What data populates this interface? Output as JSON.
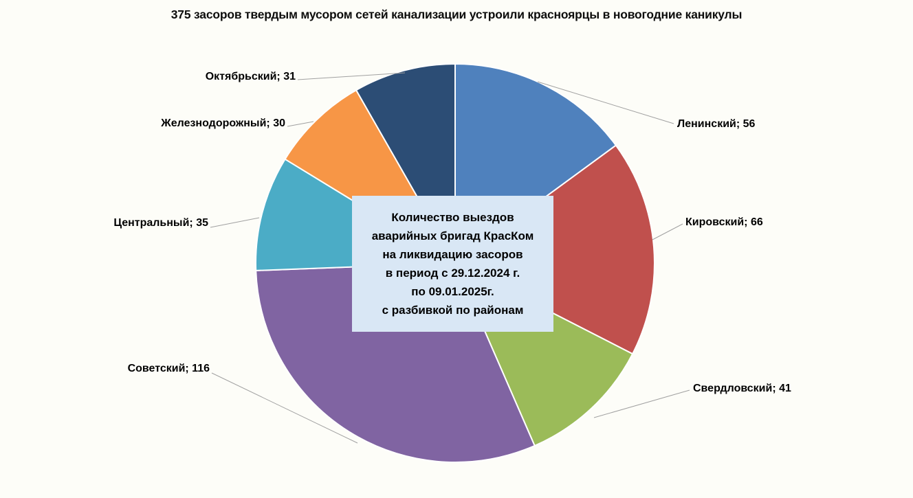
{
  "title": "375 засоров твердым мусором сетей канализации устроили красноярцы в новогодние каникулы",
  "background_color": "#FDFDF8",
  "chart_data": {
    "type": "pie",
    "title": "375 засоров твердым мусором сетей канализации устроили красноярцы в новогодние каникулы",
    "categories": [
      "Ленинский",
      "Кировский",
      "Свердловский",
      "Советский",
      "Центральный",
      "Железнодорожный",
      "Октябрьский"
    ],
    "values": [
      56,
      66,
      41,
      116,
      35,
      30,
      31
    ],
    "total": 375,
    "colors": [
      "#4F81BD",
      "#C0504D",
      "#9BBB59",
      "#8064A2",
      "#4BACC6",
      "#F79646",
      "#2C4D75"
    ],
    "start_angle_deg": 0,
    "direction": "clockwise",
    "label_format": "{name}; {value}",
    "labels": [
      "Ленинский; 56",
      "Кировский; 66",
      "Свердловский; 41",
      "Советский; 116",
      "Центральный; 35",
      "Железнодорожный; 30",
      "Октябрьский; 31"
    ],
    "legend_position": "none",
    "leader_line_color": "#A0A0A0",
    "slice_border_color": "#FFFFFF"
  },
  "center_box": {
    "background": "#D9E7F5",
    "text_color": "#000000",
    "lines": [
      "Количество выездов",
      "аварийных бригад КрасКом",
      "на ликвидацию засоров",
      "в период с 29.12.2024 г.",
      "по 09.01.2025г.",
      "с разбивкой по районам"
    ]
  }
}
